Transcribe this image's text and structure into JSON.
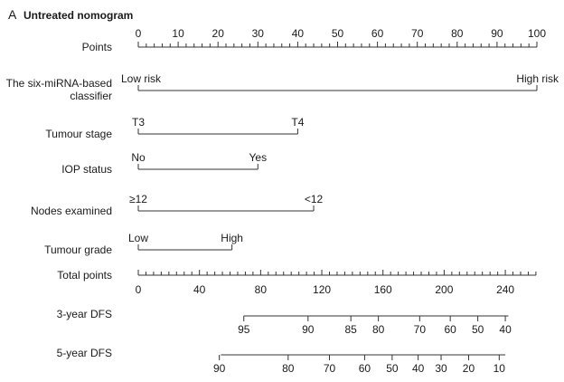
{
  "panel_letter": "A",
  "panel_title": "Untreated nomogram",
  "chart_data": {
    "type": "nomogram",
    "title": "Untreated nomogram",
    "points_axis": {
      "label": "Points",
      "range": [
        0,
        100
      ],
      "major_ticks": [
        0,
        10,
        20,
        30,
        40,
        50,
        60,
        70,
        80,
        90,
        100
      ],
      "minor_step": 2
    },
    "predictors": [
      {
        "label_lines": [
          "The six-miRNA-based",
          "classifier"
        ],
        "levels": [
          {
            "label": "Low risk",
            "points": 0
          },
          {
            "label": "High risk",
            "points": 100
          }
        ]
      },
      {
        "label_lines": [
          "Tumour stage"
        ],
        "levels": [
          {
            "label": "T3",
            "points": 0
          },
          {
            "label": "T4",
            "points": 40
          }
        ]
      },
      {
        "label_lines": [
          "IOP status"
        ],
        "levels": [
          {
            "label": "No",
            "points": 0
          },
          {
            "label": "Yes",
            "points": 30
          }
        ]
      },
      {
        "label_lines": [
          "Nodes examined"
        ],
        "levels": [
          {
            "label": "≥12",
            "points": 0
          },
          {
            "label": "<12",
            "points": 44
          }
        ]
      },
      {
        "label_lines": [
          "Tumour grade"
        ],
        "levels": [
          {
            "label": "Low",
            "points": 0
          },
          {
            "label": "High",
            "points": 23.5
          }
        ]
      }
    ],
    "total_points_axis": {
      "label": "Total points",
      "range": [
        0,
        260
      ],
      "major_ticks": [
        0,
        40,
        80,
        120,
        160,
        200,
        240
      ],
      "minor_step": 5
    },
    "outcome_axes": [
      {
        "label": "3-year DFS",
        "range_total_points": [
          69,
          242
        ],
        "ticks": [
          {
            "label": "95",
            "total": 69
          },
          {
            "label": "90",
            "total": 111
          },
          {
            "label": "85",
            "total": 139
          },
          {
            "label": "80",
            "total": 157
          },
          {
            "label": "70",
            "total": 184
          },
          {
            "label": "60",
            "total": 204
          },
          {
            "label": "50",
            "total": 222
          },
          {
            "label": "40",
            "total": 240
          }
        ]
      },
      {
        "label": "5-year DFS",
        "range_total_points": [
          54,
          240
        ],
        "ticks": [
          {
            "label": "90",
            "total": 53
          },
          {
            "label": "80",
            "total": 98
          },
          {
            "label": "70",
            "total": 125
          },
          {
            "label": "60",
            "total": 148
          },
          {
            "label": "50",
            "total": 166
          },
          {
            "label": "40",
            "total": 183
          },
          {
            "label": "30",
            "total": 198
          },
          {
            "label": "20",
            "total": 216
          },
          {
            "label": "10",
            "total": 236
          }
        ]
      }
    ]
  }
}
